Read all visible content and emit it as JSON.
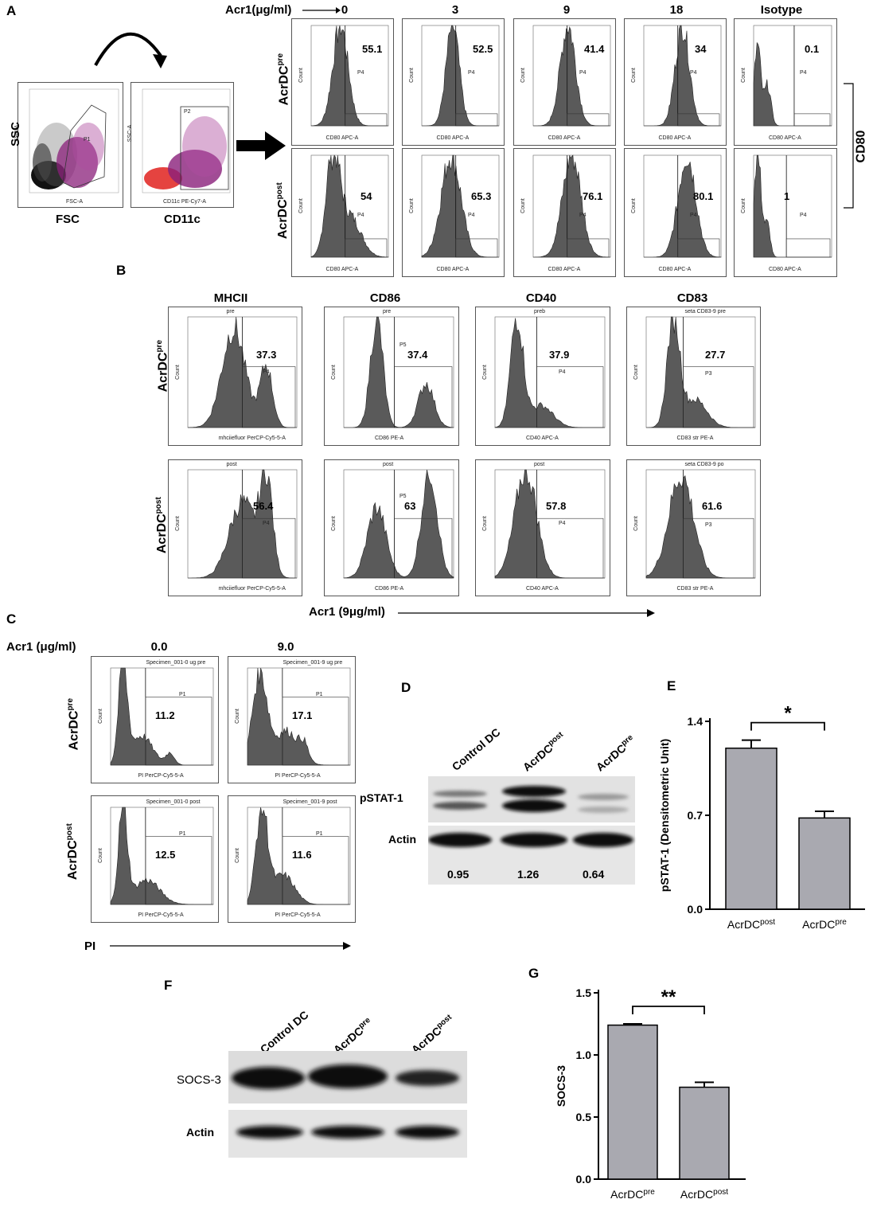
{
  "panels": {
    "A": "A",
    "B": "B",
    "C": "C",
    "D": "D",
    "E": "E",
    "F": "F",
    "G": "G"
  },
  "panelA": {
    "gating": {
      "ssc_label": "SSC",
      "fsc_label": "FSC",
      "cd11c_label": "CD11c",
      "p1_xaxis": "FSC-A",
      "p1_yaxis": "SSC-A",
      "p2_xaxis": "CD11c PE-Cy7-A",
      "p2_yaxis": "SSC-A",
      "gate_p1": "P1",
      "gate_p2": "P2"
    },
    "acr_label": "Acr1(μg/ml)",
    "columns": [
      "0",
      "3",
      "9",
      "18",
      "Isotype"
    ],
    "row_pre": "AcrDC",
    "row_pre_sup": "pre",
    "row_post": "AcrDC",
    "row_post_sup": "post",
    "marker": "CD80",
    "xaxis": "CD80 APC-A",
    "yaxis": "Count",
    "gate": "P4",
    "pre_values": [
      "55.1",
      "52.5",
      "41.4",
      "34",
      "0.1"
    ],
    "post_values": [
      "54",
      "65.3",
      "76.1",
      "80.1",
      "1"
    ]
  },
  "panelB": {
    "columns": [
      "MHCII",
      "CD86",
      "CD40",
      "CD83"
    ],
    "row_pre": "AcrDC",
    "row_pre_sup": "pre",
    "row_post": "AcrDC",
    "row_post_sup": "post",
    "pre_titles": [
      "pre",
      "pre",
      "preb",
      "seta CD83-9 pre"
    ],
    "post_titles": [
      "post",
      "post",
      "post",
      "seta CD83-9 po"
    ],
    "xaxes": [
      "mhciiefluor PerCP-Cy5-5-A",
      "CD86 PE-A",
      "CD40 APC-A",
      "CD83 str PE-A"
    ],
    "gates": [
      "P4",
      "P5",
      "P4",
      "P3"
    ],
    "pre_values": [
      "37.3",
      "37.4",
      "37.9",
      "27.7"
    ],
    "post_values": [
      "56.4",
      "63",
      "57.8",
      "61.6"
    ],
    "yaxis": "Count",
    "bottom_label": "Acr1 (9μg/ml)"
  },
  "panelC": {
    "acr_label": "Acr1 (μg/ml)",
    "columns": [
      "0.0",
      "9.0"
    ],
    "row_pre": "AcrDC",
    "row_pre_sup": "pre",
    "row_post": "AcrDC",
    "row_post_sup": "post",
    "titles": [
      "Specimen_001-0 ug pre",
      "Specimen_001-9 ug pre",
      "Specimen_001-0 post",
      "Specimen_001-9 post"
    ],
    "values": [
      "11.2",
      "17.1",
      "12.5",
      "11.6"
    ],
    "gate": "P1",
    "xaxis": "PI PerCP-Cy5-5-A",
    "yaxis": "Count",
    "bottom_label": "PI"
  },
  "panelD": {
    "lanes": [
      "Control DC",
      "AcrDC",
      "AcrDC"
    ],
    "lane_sups": [
      "",
      "post",
      "pre"
    ],
    "rows": [
      "pSTAT-1",
      "Actin"
    ],
    "values": [
      "0.95",
      "1.26",
      "0.64"
    ]
  },
  "panelF": {
    "lanes": [
      "Control DC",
      "AcrDC",
      "AcrDC"
    ],
    "lane_sups": [
      "",
      "pre",
      "post"
    ],
    "rows": [
      "SOCS-3",
      "Actin"
    ]
  },
  "chart_data": [
    {
      "type": "bar",
      "panel": "E",
      "categories": [
        "AcrDC post",
        "AcrDC pre"
      ],
      "category_main": [
        "AcrDC",
        "AcrDC"
      ],
      "category_sup": [
        "post",
        "pre"
      ],
      "values": [
        1.2,
        0.68
      ],
      "errors": [
        0.06,
        0.05
      ],
      "ylabel": "pSTAT-1 (Densitometric Unit)",
      "ylim": [
        0,
        1.4
      ],
      "yticks": [
        "0.0",
        "0.7",
        "1.4"
      ],
      "significance": "*",
      "bar_color": "#a9a9b0"
    },
    {
      "type": "bar",
      "panel": "G",
      "categories": [
        "AcrDC pre",
        "AcrDC post"
      ],
      "category_main": [
        "AcrDC",
        "AcrDC"
      ],
      "category_sup": [
        "pre",
        "post"
      ],
      "values": [
        1.24,
        0.74
      ],
      "errors": [
        0.01,
        0.04
      ],
      "ylabel": "SOCS-3",
      "ylim": [
        0,
        1.5
      ],
      "yticks": [
        "0.0",
        "0.5",
        "1.0",
        "1.5"
      ],
      "significance": "**",
      "bar_color": "#a9a9b0"
    }
  ]
}
